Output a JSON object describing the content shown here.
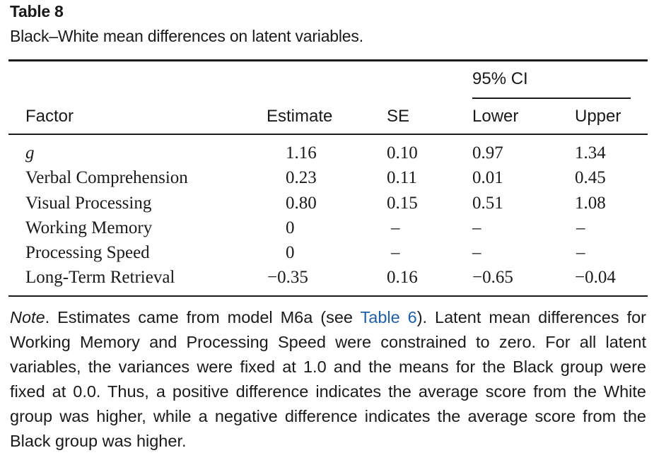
{
  "caption": {
    "number": "Table 8",
    "title": "Black–White mean differences on latent variables."
  },
  "header": {
    "ci_group": "95% CI",
    "columns": [
      "Factor",
      "Estimate",
      "SE",
      "Lower",
      "Upper"
    ]
  },
  "rows": [
    {
      "factor": "g",
      "estimate": "1.16",
      "se": "0.10",
      "lower": "0.97",
      "upper": "1.34"
    },
    {
      "factor": "Verbal Comprehension",
      "estimate": "0.23",
      "se": "0.11",
      "lower": "0.01",
      "upper": "0.45"
    },
    {
      "factor": "Visual Processing",
      "estimate": "0.80",
      "se": "0.15",
      "lower": "0.51",
      "upper": "1.08"
    },
    {
      "factor": "Working Memory",
      "estimate": "0",
      "se": "–",
      "lower": "–",
      "upper": "–"
    },
    {
      "factor": "Processing Speed",
      "estimate": "0",
      "se": "–",
      "lower": "–",
      "upper": "–"
    },
    {
      "factor": "Long-Term Retrieval",
      "estimate": "−0.35",
      "se": "0.16",
      "lower": "−0.65",
      "upper": "−0.04"
    }
  ],
  "note": {
    "label": "Note",
    "text_before_link": ". Estimates came from model M6a (see ",
    "link_text": "Table 6",
    "text_after_link": "). Latent mean differences for Working Memory and Processing Speed were constrained to zero. For all latent variables, the variances were fixed at 1.0 and the means for the Black group were fixed at 0.0. Thus, a positive difference indicates the average score from the White group was higher, while a negative difference indicates the average score from the Black group was higher.",
    "link_color": "#1f5fa8"
  }
}
